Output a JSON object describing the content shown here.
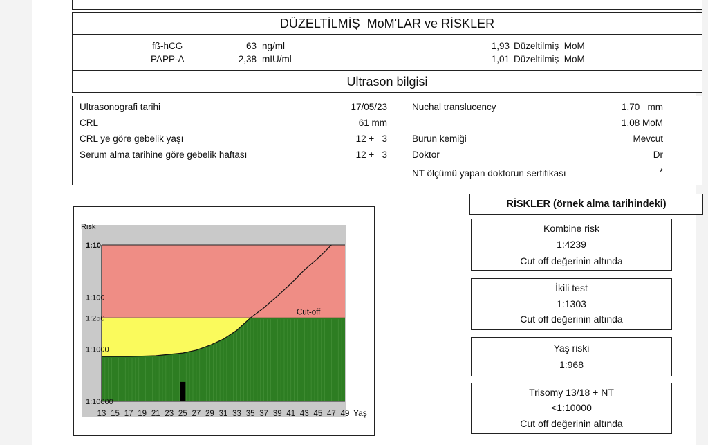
{
  "mom": {
    "title": "DÜZELTİLMİŞ  MoM'LAR ve RİSKLER",
    "rows": [
      {
        "name": "fß-hCG",
        "value": "63",
        "unit": "ng/ml",
        "mom": "1,93",
        "mom_label": "Düzeltilmiş  MoM"
      },
      {
        "name": "PAPP-A",
        "value": "2,38",
        "unit": "mIU/ml",
        "mom": "1,01",
        "mom_label": "Düzeltilmiş  MoM"
      }
    ]
  },
  "ultrasound": {
    "title": "Ultrason bilgisi",
    "left": [
      {
        "label": "Ultrasonografi tarihi",
        "value": "17/05/23"
      },
      {
        "label": "CRL",
        "value": "61 mm"
      },
      {
        "label": "CRL ye göre gebelik yaşı",
        "value": "12 +   3"
      },
      {
        "label": "Serum alma tarihine göre gebelik haftası",
        "value": "12 +   3"
      }
    ],
    "right": [
      {
        "label": "Nuchal translucency",
        "value": "1,70   mm"
      },
      {
        "label": "",
        "value": "1,08 MoM"
      },
      {
        "label": "Burun kemiği",
        "value": "Mevcut"
      },
      {
        "label": "Doktor",
        "value": "Dr"
      },
      {
        "label": "NT ölçümü yapan doktorun sertifikası",
        "value": "*"
      }
    ]
  },
  "risks": {
    "title": "RİSKLER (örnek alma tarihindeki)",
    "boxes": [
      {
        "title": "Kombine risk",
        "value": "1:4239",
        "note": "Cut off değerinin altında"
      },
      {
        "title": "İkili test",
        "value": "1:1303",
        "note": "Cut off değerinin altında"
      },
      {
        "title": "Yaş riski",
        "value": "1:968",
        "note": ""
      },
      {
        "title": "Trisomy 13/18 + NT",
        "value": "<1:10000",
        "note": "Cut off değerinin altında"
      }
    ]
  },
  "chart_data": {
    "type": "area",
    "ylabel": "Risk",
    "xlabel": "Yaş",
    "y_scale": "log",
    "y_ticks": [
      "1:10",
      "1:100",
      "1:250",
      "1:1000",
      "1:10000"
    ],
    "x_ticks": [
      13,
      15,
      17,
      19,
      21,
      23,
      25,
      27,
      29,
      31,
      33,
      35,
      37,
      39,
      41,
      43,
      45,
      47,
      49
    ],
    "xlim": [
      13,
      49
    ],
    "cutoff": {
      "label": "Cut-off",
      "value": "1:250"
    },
    "curve": {
      "x": [
        13,
        17,
        21,
        25,
        27,
        29,
        31,
        33,
        35,
        37,
        39,
        41,
        43,
        45,
        47
      ],
      "y": [
        1380,
        1380,
        1330,
        1180,
        1040,
        840,
        640,
        430,
        250,
        160,
        95,
        55,
        30,
        18,
        10
      ]
    },
    "patient_marker": {
      "age": 25,
      "risk": "1:4239"
    },
    "zone_colors": {
      "high_risk": "#ef8d85",
      "low_risk_above_curve": "#fafa5c",
      "low_risk_below_curve": "#2d7d22",
      "frame": "#c9c9c9"
    }
  }
}
